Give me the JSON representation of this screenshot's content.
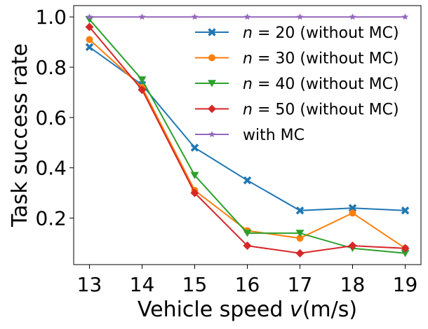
{
  "chart_data": {
    "type": "line",
    "title": "",
    "xlabel_prefix": "Vehicle speed ",
    "xlabel_var": "v",
    "xlabel_unit": "(m/s)",
    "ylabel": "Task success rate",
    "x": [
      13,
      14,
      15,
      16,
      17,
      18,
      19
    ],
    "xlim": [
      12.7,
      19.3
    ],
    "ylim": [
      0.015,
      1.045
    ],
    "yticks": [
      0.2,
      0.4,
      0.6,
      0.8,
      1.0
    ],
    "ytick_labels": [
      "0.2",
      "0.4",
      "0.6",
      "0.8",
      "1.0"
    ],
    "grid": false,
    "legend_position": "top-right",
    "series": [
      {
        "name": "n = 20 (without MC)",
        "n_var": "n",
        "n_eq": " = 20",
        "suffix": " (without MC)",
        "color": "#1f77b4",
        "marker": "x",
        "values": [
          0.88,
          0.73,
          0.48,
          0.35,
          0.23,
          0.24,
          0.23
        ]
      },
      {
        "name": "n = 30 (without MC)",
        "n_var": "n",
        "n_eq": " = 30",
        "suffix": " (without MC)",
        "color": "#ff7f0e",
        "marker": "circle",
        "values": [
          0.91,
          0.72,
          0.31,
          0.15,
          0.12,
          0.22,
          0.08
        ]
      },
      {
        "name": "n = 40 (without MC)",
        "n_var": "n",
        "n_eq": " = 40",
        "suffix": " (without MC)",
        "color": "#2ca02c",
        "marker": "triangle-down",
        "values": [
          0.99,
          0.75,
          0.37,
          0.14,
          0.14,
          0.08,
          0.06
        ]
      },
      {
        "name": "n = 50 (without MC)",
        "n_var": "n",
        "n_eq": " = 50",
        "suffix": " (without MC)",
        "color": "#d62728",
        "marker": "diamond",
        "values": [
          0.96,
          0.71,
          0.3,
          0.09,
          0.06,
          0.09,
          0.08
        ]
      },
      {
        "name": "with MC",
        "n_var": "",
        "n_eq": "",
        "suffix": "with MC",
        "color": "#9467bd",
        "marker": "star",
        "values": [
          1.0,
          1.0,
          1.0,
          1.0,
          1.0,
          1.0,
          1.0
        ]
      }
    ]
  }
}
